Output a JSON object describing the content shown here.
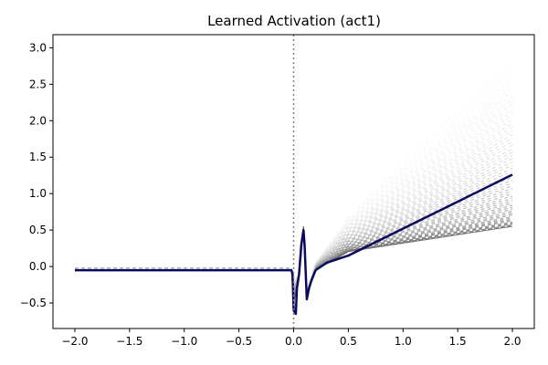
{
  "chart_data": {
    "type": "line",
    "title": "Learned Activation (act1)",
    "xlabel": "",
    "ylabel": "",
    "xlim": [
      -2.2,
      2.2
    ],
    "ylim": [
      -0.85,
      3.18
    ],
    "xticks": [
      -2.0,
      -1.5,
      -1.0,
      -0.5,
      0.0,
      0.5,
      1.0,
      1.5,
      2.0
    ],
    "xtick_labels": [
      "−2.0",
      "−1.5",
      "−1.0",
      "−0.5",
      "0.0",
      "0.5",
      "1.0",
      "1.5",
      "2.0"
    ],
    "yticks": [
      -0.5,
      0.0,
      0.5,
      1.0,
      1.5,
      2.0,
      2.5,
      3.0
    ],
    "ytick_labels": [
      "−0.5",
      "0.0",
      "0.5",
      "1.0",
      "1.5",
      "2.0",
      "2.5",
      "3.0"
    ],
    "grid": false,
    "vline_x": 0.0,
    "main_series": {
      "color": "#0b0b5e",
      "x": [
        -2.0,
        -0.5,
        -0.02,
        -0.01,
        0.0,
        0.02,
        0.03,
        0.05,
        0.07,
        0.09,
        0.1,
        0.12,
        0.14,
        0.16,
        0.2,
        0.3,
        0.5,
        1.0,
        1.5,
        2.0
      ],
      "y": [
        -0.05,
        -0.05,
        -0.05,
        -0.1,
        -0.6,
        -0.65,
        -0.3,
        -0.1,
        0.3,
        0.5,
        0.3,
        -0.45,
        -0.3,
        -0.2,
        -0.05,
        0.05,
        0.15,
        0.52,
        0.89,
        1.26
      ]
    },
    "background_series_count": 60,
    "background_endpoint_range": [
      0.55,
      2.9
    ]
  }
}
